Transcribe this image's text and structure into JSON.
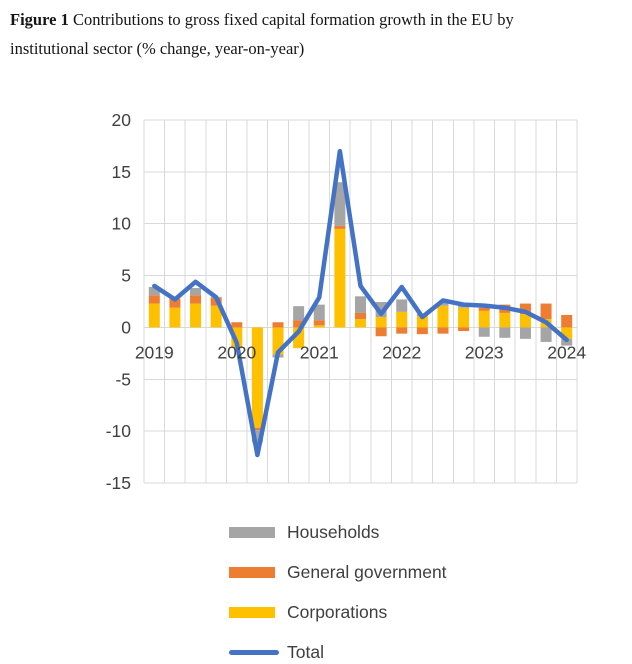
{
  "figure": {
    "label": "Figure 1",
    "title_line1": "Contributions to gross fixed capital formation growth in the EU by",
    "title_line2": "institutional sector (% change, year-on-year)"
  },
  "chart_data": {
    "type": "bar+line (stacked contribution chart)",
    "categories": [
      "2019-Q1",
      "2019-Q2",
      "2019-Q3",
      "2019-Q4",
      "2020-Q1",
      "2020-Q2",
      "2020-Q3",
      "2020-Q4",
      "2021-Q1",
      "2021-Q2",
      "2021-Q3",
      "2021-Q4",
      "2022-Q1",
      "2022-Q2",
      "2022-Q3",
      "2022-Q4",
      "2023-Q1",
      "2023-Q2",
      "2023-Q3",
      "2023-Q4",
      "2024-Q1"
    ],
    "x_tick_labels": [
      "2019",
      "2020",
      "2021",
      "2022",
      "2023",
      "2024"
    ],
    "x_tick_indices": [
      0,
      4,
      8,
      12,
      16,
      20
    ],
    "ylim": [
      -15,
      20
    ],
    "y_ticks": [
      20,
      15,
      10,
      5,
      0,
      -5,
      -10,
      -15
    ],
    "grid": true,
    "legend_position": "bottom",
    "stack_order": [
      "Corporations",
      "General government",
      "Households"
    ],
    "series": [
      {
        "name": "Households",
        "type": "bar",
        "color": "#A5A5A5",
        "values": [
          0.8,
          0.05,
          0.7,
          0.1,
          -0.1,
          -1.2,
          -0.3,
          1.35,
          1.5,
          4.2,
          1.6,
          1.45,
          1.2,
          0.25,
          0.3,
          0.3,
          -0.9,
          -1.0,
          -1.1,
          -1.4,
          -0.65
        ]
      },
      {
        "name": "General government",
        "type": "bar",
        "color": "#ED7D31",
        "values": [
          0.8,
          0.85,
          0.8,
          0.75,
          0.5,
          -0.2,
          0.5,
          0.7,
          0.5,
          0.3,
          0.6,
          -0.85,
          -0.6,
          -0.65,
          -0.6,
          -0.35,
          0.3,
          0.8,
          1.0,
          1.5,
          1.2
        ]
      },
      {
        "name": "Corporations",
        "type": "bar",
        "color": "#FFC000",
        "values": [
          2.3,
          1.9,
          2.3,
          2.1,
          -1.9,
          -9.7,
          -2.6,
          -2.0,
          0.2,
          9.5,
          0.8,
          1.0,
          1.5,
          1.1,
          2.1,
          1.9,
          1.6,
          1.4,
          1.3,
          0.8,
          -1.1
        ]
      },
      {
        "name": "Total",
        "type": "line",
        "color": "#4472C4",
        "values": [
          4.0,
          2.7,
          4.4,
          2.9,
          -1.5,
          -12.3,
          -2.4,
          -0.4,
          2.9,
          17.0,
          4.0,
          1.3,
          3.9,
          1.0,
          2.6,
          2.2,
          2.1,
          1.9,
          1.5,
          0.5,
          -1.2
        ]
      }
    ]
  },
  "style_colors": {
    "gridline": "#D9D9D9",
    "axis_text": "#404040"
  }
}
